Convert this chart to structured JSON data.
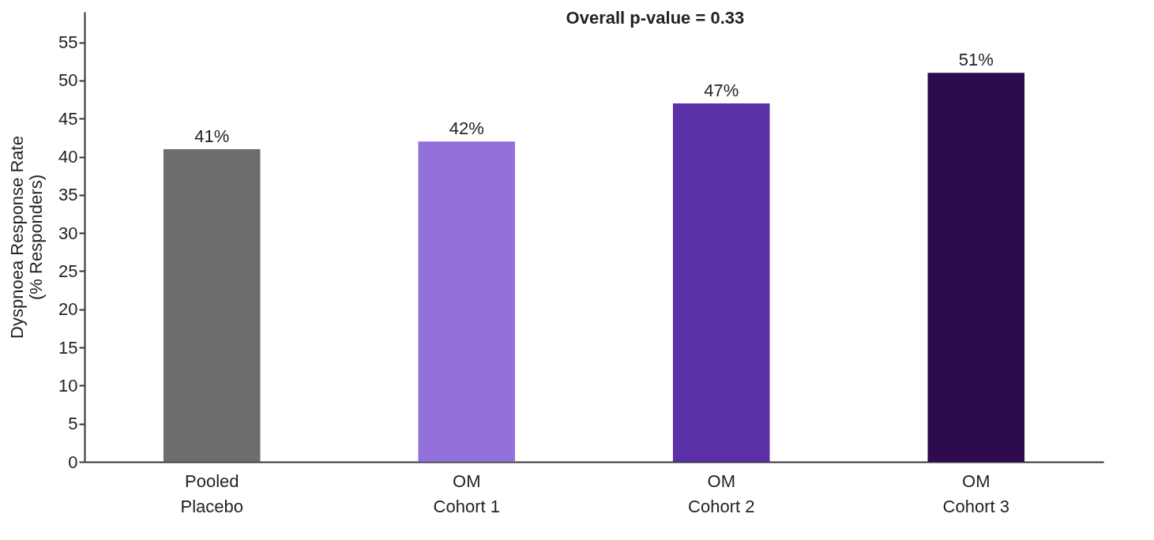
{
  "chart_data": {
    "type": "bar",
    "ylabel": "Dyspnoea Response Rate\n(% Responders)",
    "categories": [
      "Pooled\nPlacebo",
      "OM\nCohort 1",
      "OM\nCohort 2",
      "OM\nCohort 3"
    ],
    "values": [
      41,
      42,
      47,
      51
    ],
    "value_labels": [
      "41%",
      "42%",
      "47%",
      "51%"
    ],
    "colors": [
      "#6d6d6d",
      "#9370db",
      "#5b2fa6",
      "#2e0a4e"
    ],
    "ylim": [
      0,
      59
    ],
    "yticks": [
      0,
      5,
      10,
      15,
      20,
      25,
      30,
      35,
      40,
      45,
      50,
      55
    ],
    "grid": false,
    "annotations": [
      "Overall p-value = 0.33"
    ]
  }
}
